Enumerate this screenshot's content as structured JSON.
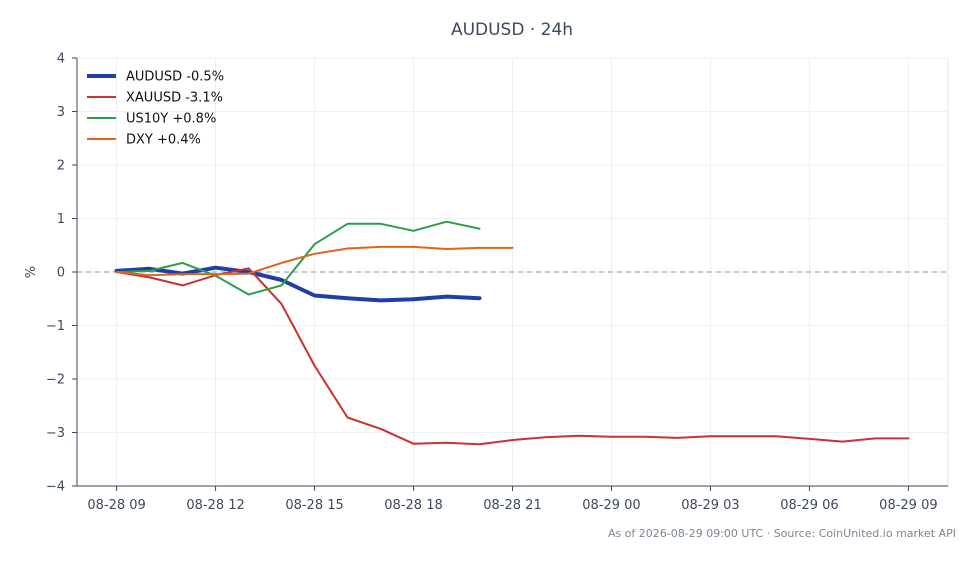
{
  "chart_data": {
    "type": "line",
    "title": "AUDUSD · 24h",
    "footer": "As of 2026-08-29 09:00 UTC · Source: CoinUnited.io market API",
    "xlabel": "",
    "ylabel": "%",
    "ylim": [
      -4,
      4
    ],
    "xlim": [
      -1.2,
      25.2
    ],
    "yticks": [
      -4,
      -3,
      -2,
      -1,
      0,
      1,
      2,
      3,
      4
    ],
    "ytick_labels": [
      "−4",
      "−3",
      "−2",
      "−1",
      "0",
      "1",
      "2",
      "3",
      "4"
    ],
    "xticks": [
      0,
      3,
      6,
      9,
      12,
      15,
      18,
      21,
      24
    ],
    "xtick_labels": [
      "08-28 09",
      "08-28 12",
      "08-28 15",
      "08-28 18",
      "08-28 21",
      "08-29 00",
      "08-29 03",
      "08-29 06",
      "08-29 09"
    ],
    "grid": true,
    "reference_line": 0,
    "legend_position": "top-left",
    "series": [
      {
        "name": "AUDUSD -0.5%",
        "color": "#1f3fa6",
        "width": 4,
        "x": [
          0,
          1,
          2,
          3,
          4,
          5,
          6,
          7,
          8,
          9,
          10,
          11
        ],
        "values": [
          0.02,
          0.06,
          -0.03,
          0.08,
          0.0,
          -0.15,
          -0.44,
          -0.49,
          -0.53,
          -0.51,
          -0.46,
          -0.49
        ]
      },
      {
        "name": "XAUUSD -3.1%",
        "color": "#c8332f",
        "width": 2,
        "x": [
          0,
          1,
          2,
          3,
          4,
          5,
          6,
          7,
          8,
          9,
          10,
          11,
          12,
          13,
          14,
          15,
          16,
          17,
          18,
          19,
          20,
          21,
          22,
          23,
          24
        ],
        "values": [
          0.0,
          -0.1,
          -0.25,
          -0.06,
          0.07,
          -0.6,
          -1.75,
          -2.72,
          -2.93,
          -3.21,
          -3.19,
          -3.22,
          -3.14,
          -3.09,
          -3.06,
          -3.08,
          -3.08,
          -3.1,
          -3.07,
          -3.07,
          -3.07,
          -3.12,
          -3.17,
          -3.11,
          -3.11
        ]
      },
      {
        "name": "US10Y +0.8%",
        "color": "#2b9e4b",
        "width": 2,
        "x": [
          0,
          1,
          2,
          3,
          4,
          5,
          6,
          7,
          8,
          9,
          10,
          11
        ],
        "values": [
          0.0,
          0.02,
          0.17,
          -0.07,
          -0.42,
          -0.25,
          0.52,
          0.9,
          0.9,
          0.77,
          0.94,
          0.81
        ]
      },
      {
        "name": "DXY +0.4%",
        "color": "#e0641f",
        "width": 2,
        "x": [
          0,
          1,
          2,
          3,
          4,
          5,
          6,
          7,
          8,
          9,
          10,
          11,
          12
        ],
        "values": [
          0.0,
          -0.06,
          -0.04,
          -0.04,
          -0.03,
          0.17,
          0.34,
          0.44,
          0.47,
          0.47,
          0.43,
          0.45,
          0.45
        ]
      }
    ]
  }
}
